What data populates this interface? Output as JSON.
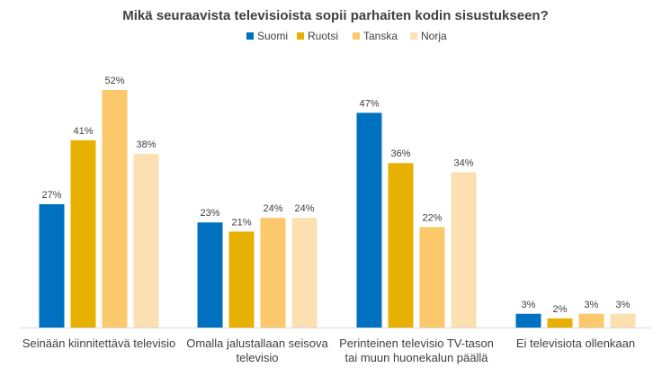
{
  "chart_data": {
    "type": "bar",
    "title": "Mikä seuraavista televisioista sopii parhaiten kodin sisustukseen?",
    "categories": [
      [
        "Seinään kiinnitettävä televisio"
      ],
      [
        "Omalla jalustallaan seisova",
        "televisio"
      ],
      [
        "Perinteinen televisio TV-tason",
        "tai muun huonekalun päällä"
      ],
      [
        "Ei televisiota ollenkaan"
      ]
    ],
    "series": [
      {
        "name": "Suomi",
        "color": "#0070C0",
        "values": [
          27,
          23,
          47,
          3
        ],
        "labels": [
          "27%",
          "23%",
          "47%",
          "3%"
        ]
      },
      {
        "name": "Ruotsi",
        "color": "#E8B000",
        "values": [
          41,
          21,
          36,
          2
        ],
        "labels": [
          "41%",
          "21%",
          "36%",
          "2%"
        ]
      },
      {
        "name": "Tanska",
        "color": "#FBC96B",
        "values": [
          52,
          24,
          22,
          3
        ],
        "labels": [
          "52%",
          "24%",
          "22%",
          "3%"
        ]
      },
      {
        "name": "Norja",
        "color": "#FCE0B2",
        "values": [
          38,
          24,
          34,
          3
        ],
        "labels": [
          "38%",
          "24%",
          "34%",
          "3%"
        ]
      }
    ],
    "ylim": [
      0,
      52
    ],
    "grid": false,
    "legend": "top"
  }
}
